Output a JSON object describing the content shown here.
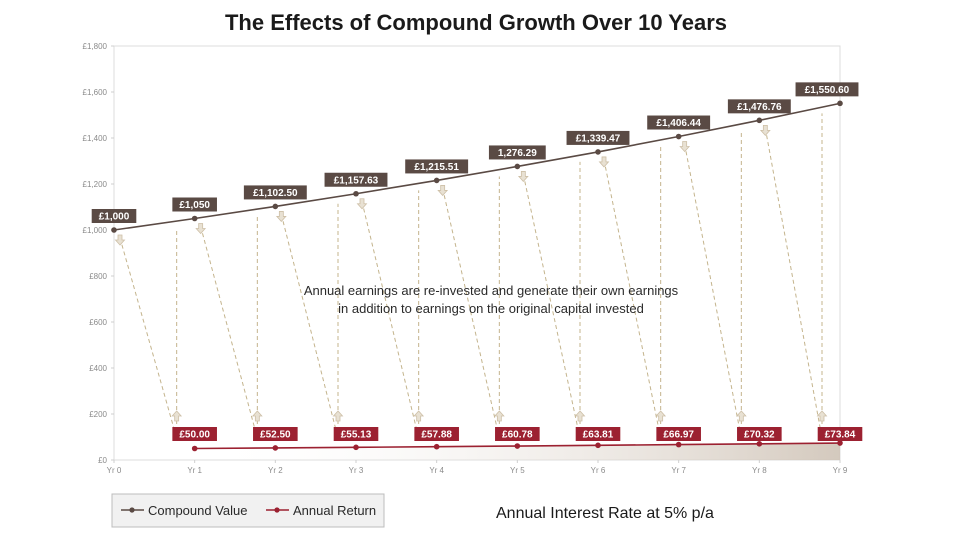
{
  "chart_data": {
    "type": "line",
    "title": "The Effects of Compound Growth Over 10 Years",
    "categories": [
      "Yr 0",
      "Yr 1",
      "Yr 2",
      "Yr 3",
      "Yr 4",
      "Yr 5",
      "Yr 6",
      "Yr 7",
      "Yr 8",
      "Yr 9"
    ],
    "ylim": [
      0,
      1800
    ],
    "y_ticks": [
      "£0",
      "£200",
      "£400",
      "£600",
      "£800",
      "£1,000",
      "£1,200",
      "£1,400",
      "£1,600",
      "£1,800"
    ],
    "y_tick_values": [
      0,
      200,
      400,
      600,
      800,
      1000,
      1200,
      1400,
      1600,
      1800
    ],
    "grid": false,
    "legend_position": "bottom-left",
    "series": [
      {
        "name": "Compound Value",
        "color": "#5a4a44",
        "values": [
          1000,
          1050,
          1102.5,
          1157.63,
          1215.51,
          1276.29,
          1339.47,
          1406.44,
          1476.76,
          1550.6
        ],
        "labels": [
          "£1,000",
          "£1,050",
          "£1,102.50",
          "£1,157.63",
          "£1,215.51",
          "1,276.29",
          "£1,339.47",
          "£1,406.44",
          "£1,476.76",
          "£1,550.60"
        ]
      },
      {
        "name": "Annual Return",
        "color": "#9c2131",
        "values": [
          null,
          50,
          52.5,
          55.13,
          57.88,
          60.78,
          63.81,
          66.97,
          70.32,
          73.84
        ],
        "labels": [
          "",
          "£50.00",
          "£52.50",
          "£55.13",
          "£57.88",
          "£60.78",
          "£63.81",
          "£66.97",
          "£70.32",
          "£73.84"
        ]
      }
    ],
    "annotation": [
      "Annual earnings are re-invested and generate their own earnings",
      "in addition to earnings on the original capital invested"
    ],
    "footnote": "Annual Interest Rate at 5% p/a"
  }
}
